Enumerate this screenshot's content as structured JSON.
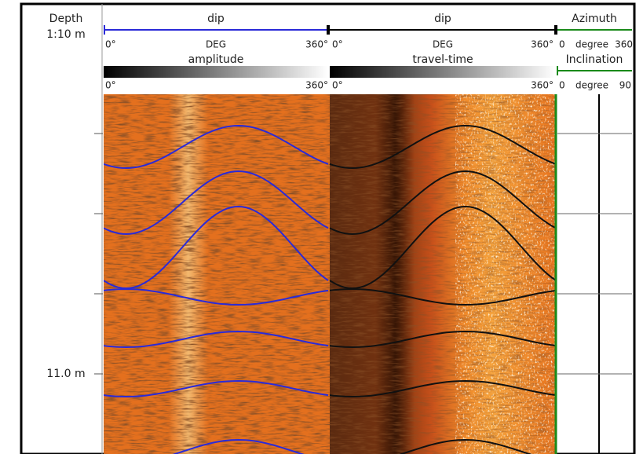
{
  "depth_track": {
    "title": "Depth",
    "scale": "1:10 m",
    "depth_label": "11.0 m"
  },
  "tracks": [
    {
      "title": "dip",
      "scale_left": "0°",
      "unit": "DEG",
      "scale_right": "360°",
      "image_title": "amplitude",
      "image_left": "0°",
      "image_right": "360°"
    },
    {
      "title": "dip",
      "scale_left": "0°",
      "unit": "DEG",
      "scale_right": "360°",
      "image_title": "travel-time",
      "image_left": "0°",
      "image_right": "360°"
    }
  ],
  "azimuth_track": {
    "title": "Azimuth",
    "scale_left": "0",
    "unit": "degree",
    "scale_right": "360",
    "sub_title": "Inclination",
    "sub_left": "0",
    "sub_unit": "degree",
    "sub_right": "90"
  }
}
